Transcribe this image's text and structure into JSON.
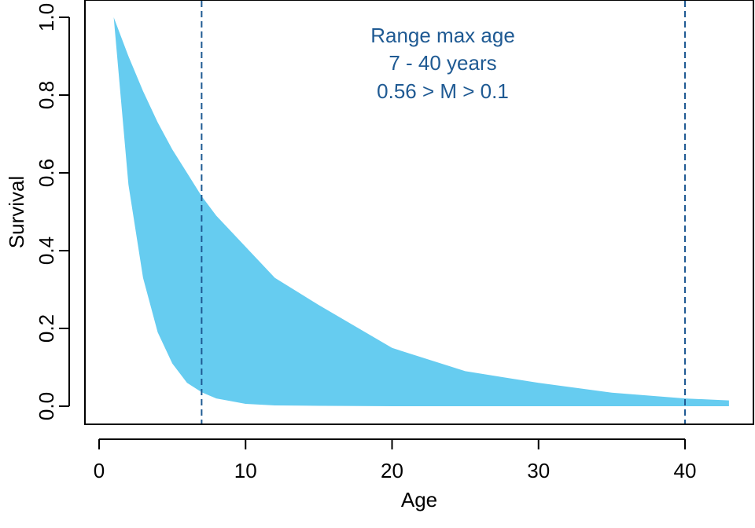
{
  "chart_data": {
    "type": "area",
    "title": "",
    "xlabel": "Age",
    "ylabel": "Survival",
    "xlim": [
      0,
      43
    ],
    "ylim": [
      0,
      1
    ],
    "x_ticks": [
      0,
      10,
      20,
      30,
      40
    ],
    "y_ticks": [
      0.0,
      0.2,
      0.4,
      0.6,
      0.8,
      1.0
    ],
    "y_tick_labels": [
      "0.0",
      "0.2",
      "0.4",
      "0.6",
      "0.8",
      "1.0"
    ],
    "grid": false,
    "fill_color": "#66ccf0",
    "line_color": "#1f5a93",
    "band": {
      "x": [
        1,
        2,
        3,
        4,
        5,
        6,
        7,
        8,
        10,
        12,
        15,
        20,
        25,
        30,
        35,
        40,
        43
      ],
      "upper": [
        1.0,
        0.9,
        0.81,
        0.73,
        0.66,
        0.6,
        0.54,
        0.49,
        0.41,
        0.33,
        0.26,
        0.15,
        0.09,
        0.06,
        0.035,
        0.02,
        0.015
      ],
      "lower": [
        1.0,
        0.57,
        0.33,
        0.19,
        0.11,
        0.06,
        0.036,
        0.02,
        0.006,
        0.002,
        0.001,
        0.0,
        0.0,
        0.0,
        0.0,
        0.0,
        0.0
      ]
    },
    "reference_lines": [
      {
        "x": 7,
        "style": "dashed"
      },
      {
        "x": 40,
        "style": "dashed"
      }
    ],
    "annotation": [
      "Range max age",
      "7 - 40 years",
      "0.56 > M > 0.1"
    ]
  }
}
